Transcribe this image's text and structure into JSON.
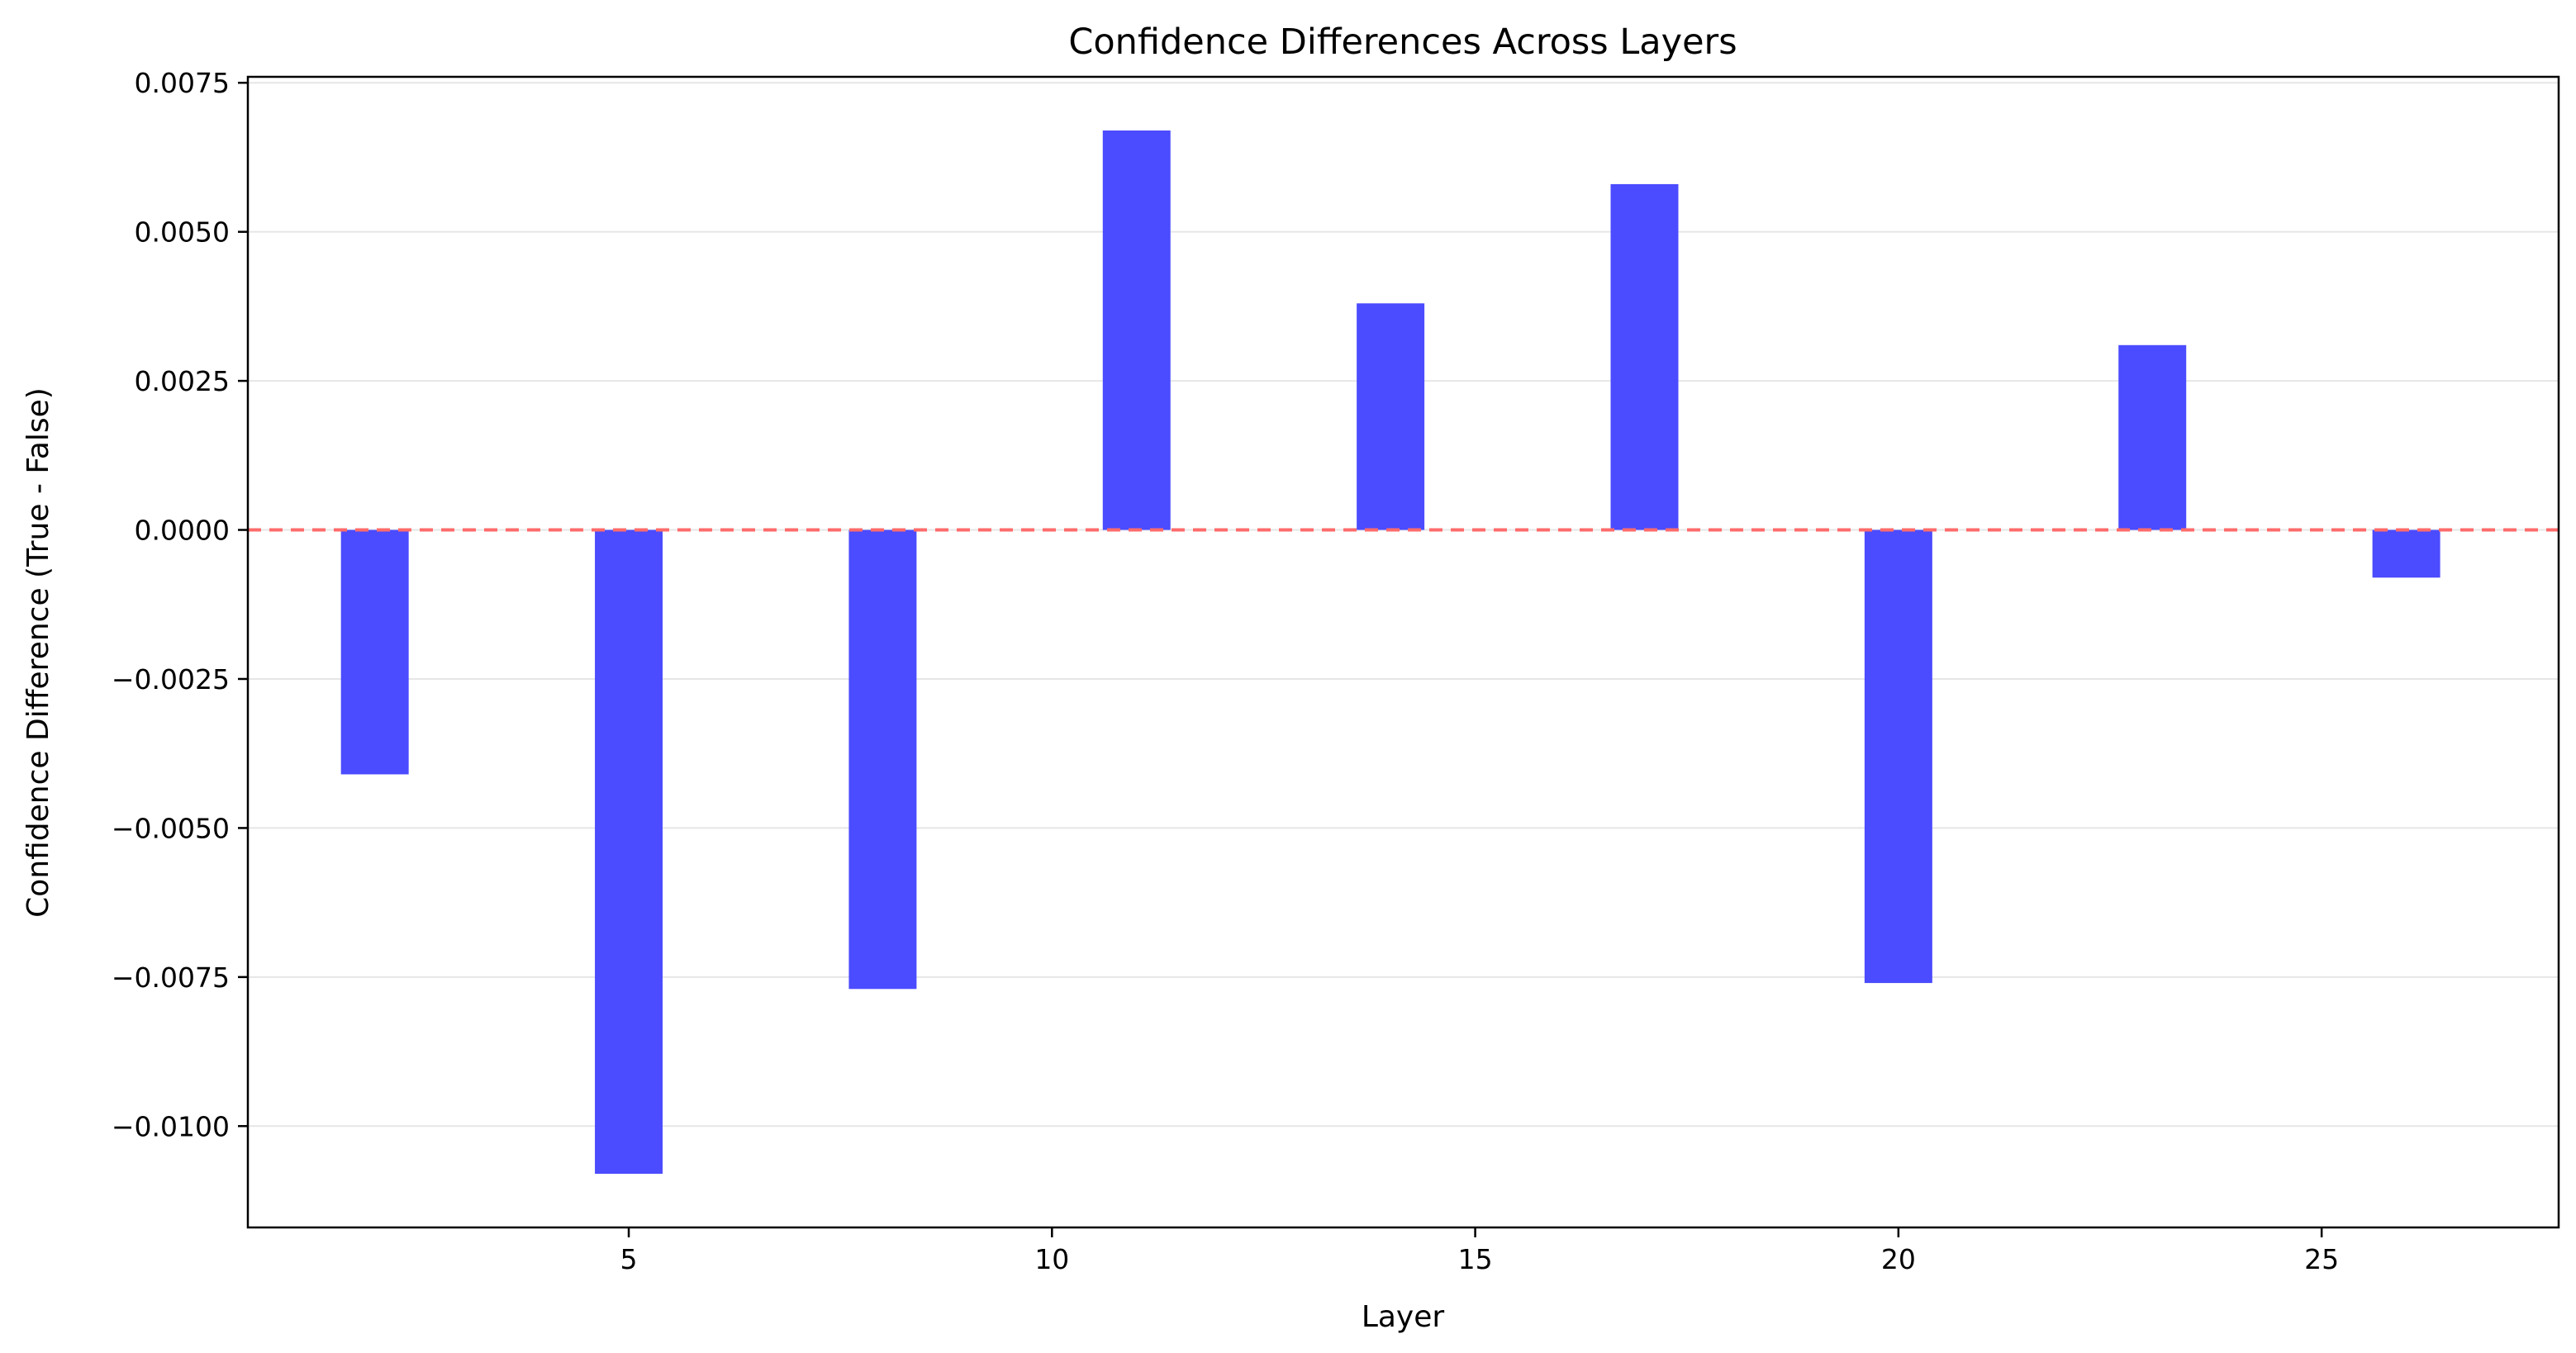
{
  "chart_data": {
    "type": "bar",
    "title": "Confidence Differences Across Layers",
    "xlabel": "Layer",
    "ylabel": "Confidence Difference (True - False)",
    "x": [
      2,
      5,
      8,
      11,
      14,
      17,
      20,
      23,
      26
    ],
    "values": [
      -0.0041,
      -0.0108,
      -0.0077,
      0.0067,
      0.0038,
      0.0058,
      -0.0076,
      0.0031,
      -0.0008
    ],
    "xlim": [
      0.5,
      27.8
    ],
    "ylim": [
      -0.0117,
      0.0076
    ],
    "bar_width": 0.8,
    "x_ticks": [
      5,
      10,
      15,
      20,
      25
    ],
    "x_tick_labels": [
      "5",
      "10",
      "15",
      "20",
      "25"
    ],
    "y_ticks": [
      -0.01,
      -0.0075,
      -0.005,
      -0.0025,
      0,
      0.0025,
      0.005,
      0.0075
    ],
    "y_tick_labels": [
      "−0.0100",
      "−0.0075",
      "−0.0050",
      "−0.0025",
      "0.0000",
      "0.0025",
      "0.0050",
      "0.0075"
    ],
    "grid": "horizontal",
    "reference_line": {
      "y": 0,
      "style": "dashed",
      "color": "#ff6b6b"
    },
    "colors": {
      "bar": "#4b4bff",
      "grid": "#e6e6e6",
      "axis": "#000000"
    }
  }
}
